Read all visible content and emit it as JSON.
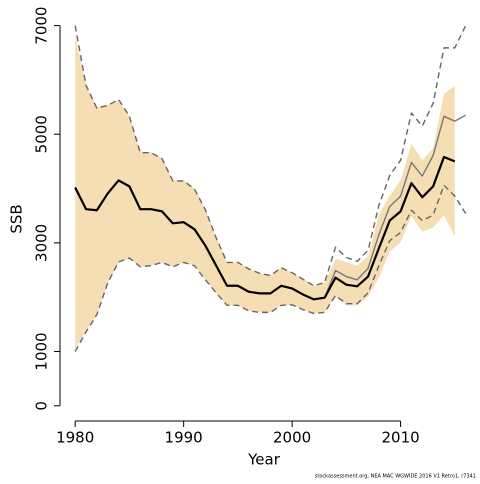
{
  "chart_data": {
    "type": "line",
    "x_label": "Year",
    "y_label": "SSB",
    "footnote": "stockassessment.org, NEA MAC WGWIDE 2016 V1 Retro1, r7341",
    "x": [
      1980,
      1981,
      1982,
      1983,
      1984,
      1985,
      1986,
      1987,
      1988,
      1989,
      1990,
      1991,
      1992,
      1993,
      1994,
      1995,
      1996,
      1997,
      1998,
      1999,
      2000,
      2001,
      2002,
      2003,
      2004,
      2005,
      2006,
      2007,
      2008,
      2009,
      2010,
      2011,
      2012,
      2013,
      2014,
      2015,
      2016
    ],
    "xlim": [
      1978.6,
      2016.4
    ],
    "xticks": [
      1980,
      1990,
      2000,
      2010
    ],
    "ylim": [
      -280,
      7140
    ],
    "yticks": [
      0,
      1000,
      3000,
      5000,
      7000
    ],
    "band": {
      "color": "#f5deb3",
      "lower": [
        1050,
        1380,
        1680,
        2250,
        2640,
        2710,
        2560,
        2580,
        2640,
        2560,
        2640,
        2580,
        2320,
        2080,
        1850,
        1850,
        1750,
        1720,
        1720,
        1850,
        1860,
        1770,
        1700,
        1720,
        2010,
        1850,
        1850,
        2010,
        2360,
        2840,
        3010,
        3490,
        3210,
        3280,
        3510,
        3120,
        null
      ],
      "upper": [
        6830,
        5900,
        5500,
        5550,
        5630,
        5330,
        4670,
        4670,
        4560,
        4150,
        4150,
        4000,
        3620,
        3100,
        2640,
        2640,
        2530,
        2440,
        2400,
        2550,
        2450,
        2340,
        2210,
        2270,
        2710,
        2640,
        2580,
        2750,
        3520,
        3870,
        4150,
        4820,
        4520,
        4740,
        5740,
        5890,
        null
      ]
    },
    "series": [
      {
        "color": "#666666",
        "dash": true,
        "values": [
          7000,
          5900,
          5480,
          5530,
          5640,
          5330,
          4660,
          4660,
          4550,
          4140,
          4140,
          3990,
          3610,
          3090,
          2640,
          2640,
          2520,
          2440,
          2400,
          2540,
          2450,
          2330,
          2210,
          2270,
          2920,
          2730,
          2660,
          2860,
          3690,
          4240,
          4520,
          5390,
          5150,
          5570,
          6590,
          6590,
          7000
        ]
      },
      {
        "color": "#666666",
        "dash": true,
        "values": [
          1000,
          1360,
          1680,
          2260,
          2650,
          2720,
          2560,
          2580,
          2640,
          2560,
          2640,
          2580,
          2320,
          2080,
          1850,
          1850,
          1750,
          1720,
          1720,
          1850,
          1860,
          1770,
          1700,
          1720,
          2030,
          1880,
          1880,
          2080,
          2580,
          3040,
          3190,
          3600,
          3410,
          3510,
          4060,
          3860,
          3540
        ]
      },
      {
        "color": "#777777",
        "dash": false,
        "values": [
          4020,
          3620,
          3600,
          3910,
          4150,
          4040,
          3620,
          3620,
          3580,
          3360,
          3380,
          3250,
          2950,
          2580,
          2210,
          2210,
          2100,
          2070,
          2070,
          2210,
          2160,
          2050,
          1960,
          1990,
          2490,
          2380,
          2320,
          2530,
          3150,
          3670,
          3860,
          4480,
          4230,
          4610,
          5330,
          5240,
          5350
        ]
      },
      {
        "color": "#000000",
        "dash": false,
        "values": [
          4020,
          3620,
          3600,
          3910,
          4150,
          4040,
          3620,
          3620,
          3580,
          3360,
          3380,
          3250,
          2950,
          2580,
          2210,
          2210,
          2100,
          2070,
          2070,
          2210,
          2160,
          2050,
          1960,
          1990,
          2360,
          2230,
          2200,
          2380,
          2900,
          3410,
          3580,
          4100,
          3840,
          4040,
          4580,
          4500,
          null
        ]
      }
    ]
  }
}
